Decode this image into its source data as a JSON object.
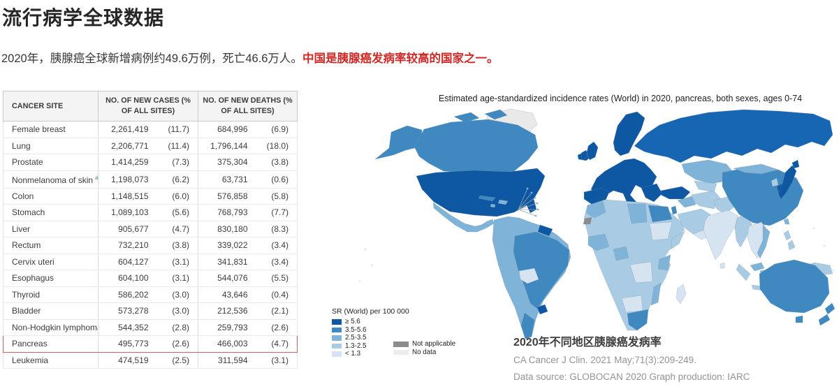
{
  "page": {
    "title": "流行病学全球数据",
    "subtitle_main": "2020年，胰腺癌全球新增病例约49.6万例，死亡46.6万人。",
    "subtitle_highlight": "中国是胰腺癌发病率较高的国家之一。",
    "highlight_text_color": "#cf2a27"
  },
  "table": {
    "headers": [
      "CANCER SITE",
      "NO. OF NEW CASES (% OF ALL SITES)",
      "NO. OF NEW DEATHS (% OF ALL SITES)"
    ],
    "highlight_border_color": "#d4605b",
    "rows": [
      {
        "site": "Female breast",
        "cases": "2,261,419",
        "cases_pct": "(11.7)",
        "deaths": "684,996",
        "deaths_pct": "(6.9)"
      },
      {
        "site": "Lung",
        "cases": "2,206,771",
        "cases_pct": "(11.4)",
        "deaths": "1,796,144",
        "deaths_pct": "(18.0)"
      },
      {
        "site": "Prostate",
        "cases": "1,414,259",
        "cases_pct": "(7.3)",
        "deaths": "375,304",
        "deaths_pct": "(3.8)"
      },
      {
        "site": "Nonmelanoma of skin",
        "sup": "a",
        "cases": "1,198,073",
        "cases_pct": "(6.2)",
        "deaths": "63,731",
        "deaths_pct": "(0.6)"
      },
      {
        "site": "Colon",
        "cases": "1,148,515",
        "cases_pct": "(6.0)",
        "deaths": "576,858",
        "deaths_pct": "(5.8)"
      },
      {
        "site": "Stomach",
        "cases": "1,089,103",
        "cases_pct": "(5.6)",
        "deaths": "768,793",
        "deaths_pct": "(7.7)"
      },
      {
        "site": "Liver",
        "cases": "905,677",
        "cases_pct": "(4.7)",
        "deaths": "830,180",
        "deaths_pct": "(8.3)"
      },
      {
        "site": "Rectum",
        "cases": "732,210",
        "cases_pct": "(3.8)",
        "deaths": "339,022",
        "deaths_pct": "(3.4)"
      },
      {
        "site": "Cervix uteri",
        "cases": "604,127",
        "cases_pct": "(3.1)",
        "deaths": "341,831",
        "deaths_pct": "(3.4)"
      },
      {
        "site": "Esophagus",
        "cases": "604,100",
        "cases_pct": "(3.1)",
        "deaths": "544,076",
        "deaths_pct": "(5.5)"
      },
      {
        "site": "Thyroid",
        "cases": "586,202",
        "cases_pct": "(3.0)",
        "deaths": "43,646",
        "deaths_pct": "(0.4)"
      },
      {
        "site": "Bladder",
        "cases": "573,278",
        "cases_pct": "(3.0)",
        "deaths": "212,536",
        "deaths_pct": "(2.1)"
      },
      {
        "site": "Non-Hodgkin lymphoma",
        "cases": "544,352",
        "cases_pct": "(2.8)",
        "deaths": "259,793",
        "deaths_pct": "(2.6)"
      },
      {
        "site": "Pancreas",
        "highlight": true,
        "cases": "495,773",
        "cases_pct": "(2.6)",
        "deaths": "466,003",
        "deaths_pct": "(4.7)"
      },
      {
        "site": "Leukemia",
        "cases": "474,519",
        "cases_pct": "(2.5)",
        "deaths": "311,594",
        "deaths_pct": "(3.1)"
      }
    ]
  },
  "map": {
    "title": "Estimated age-standardized incidence rates (World) in 2020, pancreas, both sexes, ages 0-74",
    "legend": {
      "title": "SR (World) per 100 000",
      "items": [
        {
          "label": "≥ 5.6",
          "color": "#0d57a3"
        },
        {
          "label": "3.5-5.6",
          "color": "#3f88c0"
        },
        {
          "label": "2.5-3.5",
          "color": "#7fb3d8"
        },
        {
          "label": "1.3-2.5",
          "color": "#a9cce4"
        },
        {
          "label": "< 1.3",
          "color": "#d6e4f1"
        }
      ],
      "extra": [
        {
          "label": "Not applicable",
          "color": "#8c8c8c"
        },
        {
          "label": "No data",
          "color": "#ececec"
        }
      ]
    }
  },
  "caption": {
    "title": "2020年不同地区胰腺癌发病率",
    "line1": "CA Cancer J Clin. 2021 May;71(3):209-249.",
    "line2": "Data source: GLOBOCAN 2020 Graph production: IARC"
  }
}
